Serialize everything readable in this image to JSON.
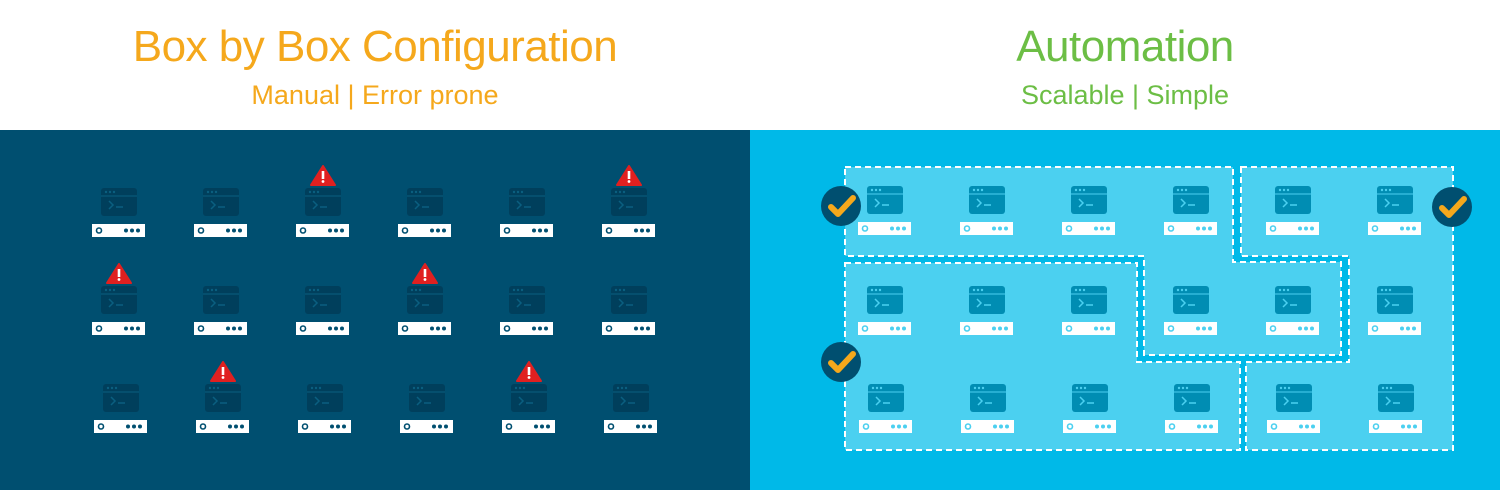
{
  "left": {
    "title": "Box by Box Configuration",
    "subtitle": "Manual | Error prone",
    "color": "#F5A81C",
    "rows": [
      [
        false,
        false,
        true,
        false,
        false,
        true
      ],
      [
        true,
        false,
        false,
        true,
        false,
        false
      ],
      [
        false,
        true,
        false,
        false,
        true,
        false
      ]
    ],
    "status_icon": "warning-triangle-icon"
  },
  "right": {
    "title": "Automation",
    "subtitle": "Scalable | Simple",
    "color": "#6CBE45",
    "server_rows": 3,
    "server_cols": 6,
    "groups": 3,
    "status_icon": "checkmark-circle-icon"
  },
  "colors": {
    "left_bg": "#004F70",
    "right_bg": "#00B9E8",
    "group_fill": "#4BD0F0",
    "warning": "#E02020",
    "check": "#F5A81C"
  }
}
